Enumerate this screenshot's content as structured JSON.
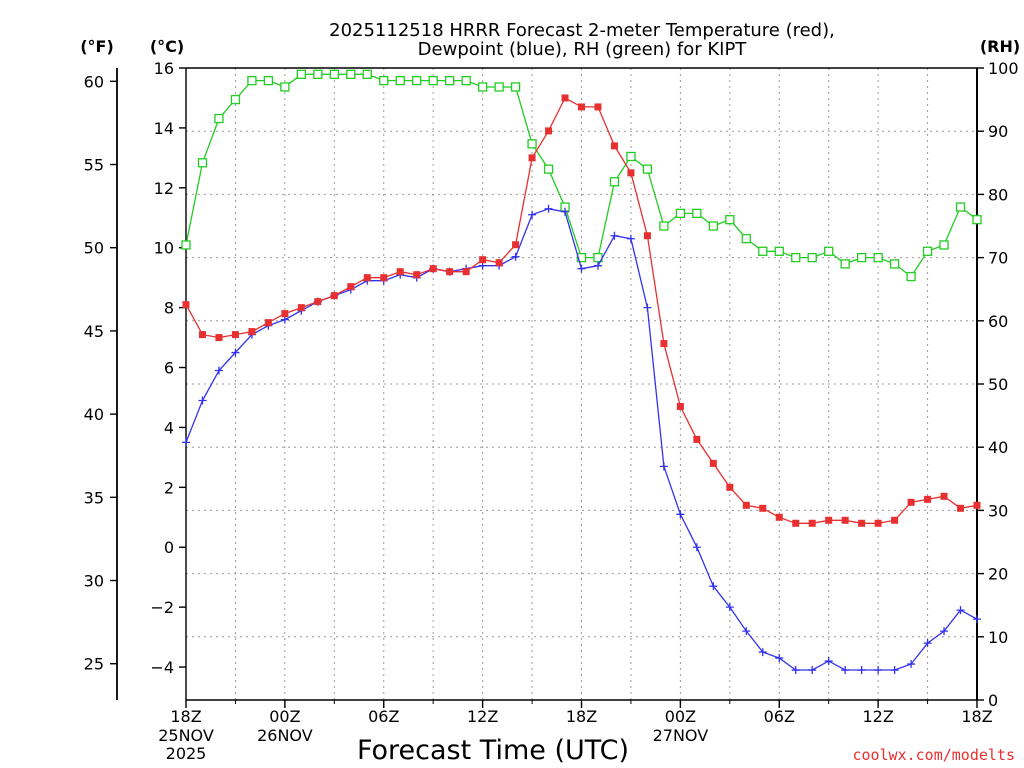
{
  "chart_data": {
    "type": "line",
    "title_line1": "2025112518 HRRR Forecast 2-meter Temperature (red),",
    "title_line2": "Dewpoint (blue), RH (green) for KIPT",
    "xlabel": "Forecast Time (UTC)",
    "credit": "coolwx.com/modelts",
    "unit_f": "(°F)",
    "unit_c": "(°C)",
    "unit_rh": "(RH)",
    "x": [
      0,
      1,
      2,
      3,
      4,
      5,
      6,
      7,
      8,
      9,
      10,
      11,
      12,
      13,
      14,
      15,
      16,
      17,
      18,
      19,
      20,
      21,
      22,
      23,
      24,
      25,
      26,
      27,
      28,
      29,
      30,
      31,
      32,
      33,
      34,
      35,
      36,
      37,
      38,
      39,
      40,
      41,
      42,
      43,
      44,
      45,
      46,
      47,
      48
    ],
    "xlim": [
      0,
      48
    ],
    "x_ticks": [
      {
        "x": 0,
        "label": "18Z",
        "sub1": "25NOV",
        "sub2": "2025"
      },
      {
        "x": 6,
        "label": "00Z",
        "sub1": "26NOV",
        "sub2": ""
      },
      {
        "x": 12,
        "label": "06Z",
        "sub1": "",
        "sub2": ""
      },
      {
        "x": 18,
        "label": "12Z",
        "sub1": "",
        "sub2": ""
      },
      {
        "x": 24,
        "label": "18Z",
        "sub1": "",
        "sub2": ""
      },
      {
        "x": 30,
        "label": "00Z",
        "sub1": "27NOV",
        "sub2": ""
      },
      {
        "x": 36,
        "label": "06Z",
        "sub1": "",
        "sub2": ""
      },
      {
        "x": 42,
        "label": "12Z",
        "sub1": "",
        "sub2": ""
      },
      {
        "x": 48,
        "label": "18Z",
        "sub1": "",
        "sub2": ""
      }
    ],
    "ylim_c": [
      -5.1,
      16
    ],
    "yticks_c": [
      {
        "v": -4,
        "label": "−4"
      },
      {
        "v": -2,
        "label": "−2"
      },
      {
        "v": 0,
        "label": "0"
      },
      {
        "v": 2,
        "label": "2"
      },
      {
        "v": 4,
        "label": "4"
      },
      {
        "v": 6,
        "label": "6"
      },
      {
        "v": 8,
        "label": "8"
      },
      {
        "v": 10,
        "label": "10"
      },
      {
        "v": 12,
        "label": "12"
      },
      {
        "v": 14,
        "label": "14"
      },
      {
        "v": 16,
        "label": "16"
      }
    ],
    "yticks_f": [
      {
        "v": 25,
        "label": "25"
      },
      {
        "v": 30,
        "label": "30"
      },
      {
        "v": 35,
        "label": "35"
      },
      {
        "v": 40,
        "label": "40"
      },
      {
        "v": 45,
        "label": "45"
      },
      {
        "v": 50,
        "label": "50"
      },
      {
        "v": 55,
        "label": "55"
      },
      {
        "v": 60,
        "label": "60"
      }
    ],
    "ylim_rh": [
      0,
      100
    ],
    "yticks_rh": [
      {
        "v": 0,
        "label": "0"
      },
      {
        "v": 10,
        "label": "10"
      },
      {
        "v": 20,
        "label": "20"
      },
      {
        "v": 30,
        "label": "30"
      },
      {
        "v": 40,
        "label": "40"
      },
      {
        "v": 50,
        "label": "50"
      },
      {
        "v": 60,
        "label": "60"
      },
      {
        "v": 70,
        "label": "70"
      },
      {
        "v": 80,
        "label": "80"
      },
      {
        "v": 90,
        "label": "90"
      },
      {
        "v": 100,
        "label": "100"
      }
    ],
    "series": [
      {
        "name": "2-meter Temperature",
        "axis": "c",
        "color": "#e83030",
        "marker": "filled-square",
        "values": [
          8.1,
          7.1,
          7.0,
          7.1,
          7.2,
          7.5,
          7.8,
          8.0,
          8.2,
          8.4,
          8.7,
          9.0,
          9.0,
          9.2,
          9.1,
          9.3,
          9.2,
          9.2,
          9.6,
          9.5,
          10.1,
          13.0,
          13.9,
          15.0,
          14.7,
          14.7,
          13.4,
          12.5,
          10.4,
          6.8,
          4.7,
          3.6,
          2.8,
          2.0,
          1.4,
          1.3,
          1.0,
          0.8,
          0.8,
          0.9,
          0.9,
          0.8,
          0.8,
          0.9,
          1.5,
          1.6,
          1.7,
          1.3,
          1.4
        ]
      },
      {
        "name": "Dewpoint",
        "axis": "c",
        "color": "#3333ee",
        "marker": "plus",
        "values": [
          3.5,
          4.9,
          5.9,
          6.5,
          7.1,
          7.4,
          7.6,
          7.9,
          8.2,
          8.4,
          8.6,
          8.9,
          8.9,
          9.1,
          9.0,
          9.3,
          9.2,
          9.3,
          9.4,
          9.4,
          9.7,
          11.1,
          11.3,
          11.2,
          9.3,
          9.4,
          10.4,
          10.3,
          8.0,
          2.7,
          1.1,
          0.0,
          -1.3,
          -2.0,
          -2.8,
          -3.5,
          -3.7,
          -4.1,
          -4.1,
          -3.8,
          -4.1,
          -4.1,
          -4.1,
          -4.1,
          -3.9,
          -3.2,
          -2.8,
          -2.1,
          -2.4
        ]
      },
      {
        "name": "RH",
        "axis": "rh",
        "color": "#22cc22",
        "marker": "open-square",
        "values": [
          72,
          85,
          92,
          95,
          98,
          98,
          97,
          99,
          99,
          99,
          99,
          99,
          98,
          98,
          98,
          98,
          98,
          98,
          97,
          97,
          97,
          88,
          84,
          78,
          70,
          70,
          82,
          86,
          84,
          75,
          77,
          77,
          75,
          76,
          73,
          71,
          71,
          70,
          70,
          71,
          69,
          70,
          70,
          69,
          67,
          71,
          72,
          78,
          76
        ]
      }
    ]
  }
}
